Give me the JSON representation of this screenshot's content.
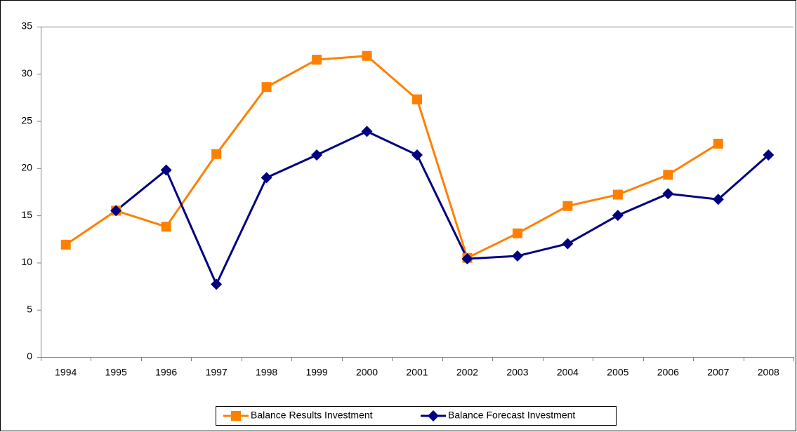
{
  "chart_data": {
    "type": "line",
    "categories": [
      "1994",
      "1995",
      "1996",
      "1997",
      "1998",
      "1999",
      "2000",
      "2001",
      "2002",
      "2003",
      "2004",
      "2005",
      "2006",
      "2007",
      "2008"
    ],
    "series": [
      {
        "name": "Balance Results Investment",
        "color": "#ff8000",
        "marker": "square",
        "values": [
          11.9,
          15.5,
          13.8,
          21.5,
          28.6,
          31.5,
          31.9,
          27.3,
          10.5,
          13.1,
          16.0,
          17.2,
          19.3,
          22.6,
          null
        ]
      },
      {
        "name": "Balance Forecast Investment",
        "color": "#000080",
        "marker": "diamond",
        "values": [
          null,
          15.5,
          19.8,
          7.7,
          19.0,
          21.4,
          23.9,
          21.4,
          10.4,
          10.7,
          12.0,
          15.0,
          17.3,
          16.7,
          21.4
        ]
      }
    ],
    "ylim": [
      0,
      35
    ],
    "yticks": [
      0,
      5,
      10,
      15,
      20,
      25,
      30,
      35
    ],
    "grid": false,
    "legend": "bottom"
  }
}
